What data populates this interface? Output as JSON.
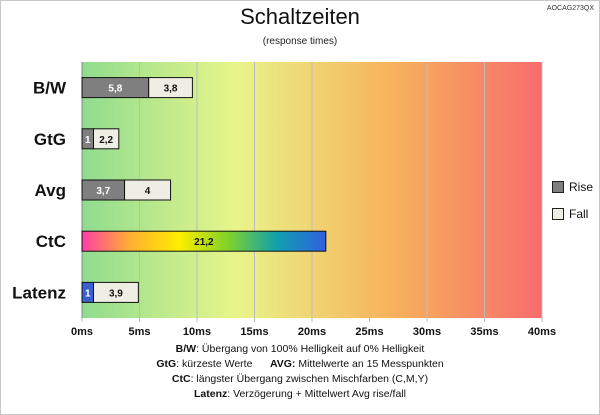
{
  "title": "Schaltzeiten",
  "subtitle": "(response times)",
  "code": "AOCAG273QX",
  "legend": {
    "rise": {
      "label": "Rise",
      "color": "#7f7f7f"
    },
    "fall": {
      "label": "Fall",
      "color": "#eeeee4"
    }
  },
  "notes": [
    {
      "k1": "B/W",
      "t1": ":  Übergang von 100% Helligkeit auf 0% Helligkeit",
      "k2": "",
      "t2": ""
    },
    {
      "k1": "GtG",
      "t1": ": kürzeste  Werte",
      "k2": "AVG:",
      "t2": " Mittelwerte  an 15 Messpunkten"
    },
    {
      "k1": "CtC",
      "t1": ": längster Übergang  zwischen Mischfarben  (C,M,Y)",
      "k2": "",
      "t2": ""
    },
    {
      "k1": "Latenz",
      "t1": ": Verzögerung  + Mittelwert Avg rise/fall",
      "k2": "",
      "t2": ""
    }
  ],
  "chart_data": {
    "type": "bar",
    "orientation": "horizontal",
    "stacked": true,
    "title": "Schaltzeiten",
    "subtitle": "(response times)",
    "xlim": [
      0,
      40
    ],
    "x_ticks": [
      "0ms",
      "5ms",
      "10ms",
      "15ms",
      "20ms",
      "25ms",
      "30ms",
      "35ms",
      "40ms"
    ],
    "categories": [
      "B/W",
      "GtG",
      "Avg",
      "CtC",
      "Latenz"
    ],
    "series": [
      {
        "name": "Rise",
        "values": [
          5.8,
          1,
          3.7,
          null,
          1
        ],
        "labels": [
          "5,8",
          "1",
          "3,7",
          "",
          "1"
        ]
      },
      {
        "name": "Fall",
        "values": [
          3.8,
          2.2,
          4,
          null,
          3.9
        ],
        "labels": [
          "3,8",
          "2,2",
          "4",
          "",
          "3,9"
        ]
      }
    ],
    "single": {
      "category": "CtC",
      "value": 21.2,
      "label": "21,2"
    },
    "colors": {
      "rise": "#7f7f7f",
      "fall": "#eeeee4",
      "latenz_first": "#3b5fd0",
      "background_gradient": [
        "#8fdc8f",
        "#e8f58a",
        "#f7b35c",
        "#f76d6d"
      ],
      "ctc_gradient": [
        "#ff3fa4",
        "#ffb030",
        "#ffee00",
        "#7fd12a",
        "#10a0b0",
        "#3060e0"
      ]
    },
    "grid": true
  }
}
